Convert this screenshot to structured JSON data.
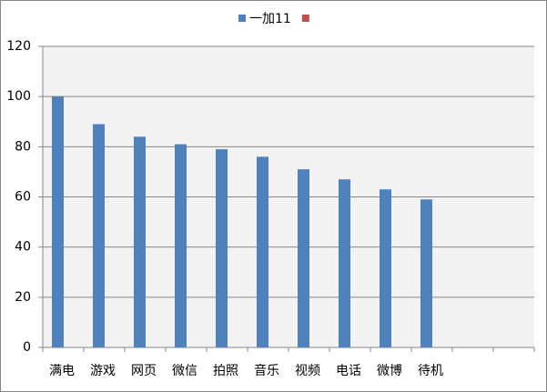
{
  "chart_data": {
    "type": "bar",
    "categories": [
      "满电",
      "游戏",
      "网页",
      "微信",
      "拍照",
      "音乐",
      "视频",
      "电话",
      "微博",
      "待机",
      null,
      null
    ],
    "series": [
      {
        "name": "一加11",
        "color": "#4f81bd",
        "values": [
          100,
          89,
          84,
          81,
          79,
          76,
          71,
          67,
          63,
          59,
          null,
          null
        ]
      },
      {
        "color": "#c0504d",
        "values": [
          null,
          null,
          null,
          null,
          null,
          null,
          null,
          null,
          null,
          null,
          null,
          null
        ]
      }
    ],
    "ylim": [
      0,
      120
    ],
    "yticks": [
      0,
      20,
      40,
      60,
      80,
      100,
      120
    ],
    "grid": true
  }
}
